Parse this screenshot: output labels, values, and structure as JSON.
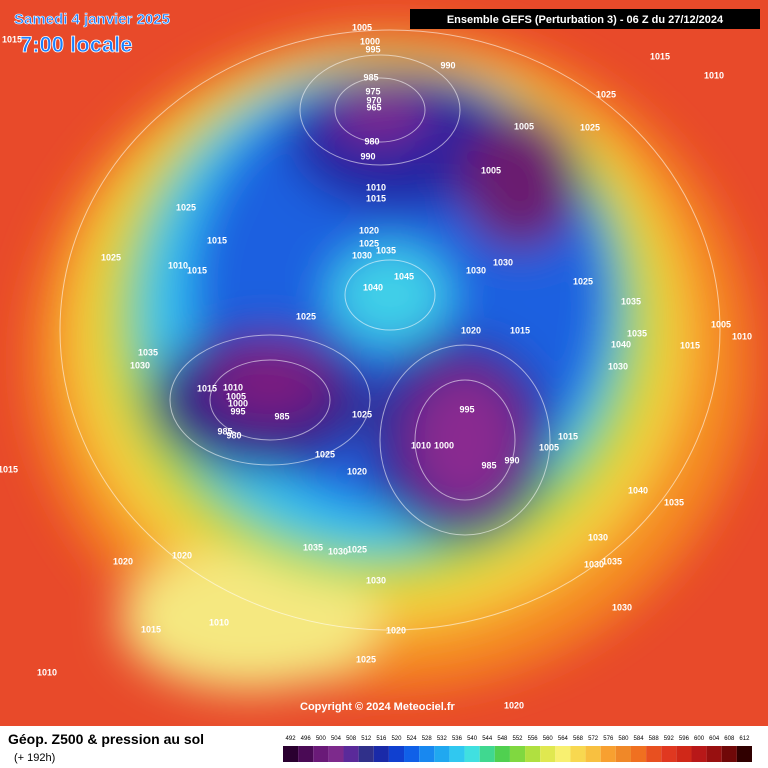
{
  "header": {
    "date": "Samedi 4 janvier 2025",
    "time": "7:00 locale",
    "model": "Ensemble GEFS  (Perturbation 3)  -  06 Z du 27/12/2024"
  },
  "footer": {
    "title": "Géop. Z500 & pression au sol",
    "lead": "(+ 192h)",
    "copyright": "Copyright © 2024 Meteociel.fr"
  },
  "isobar_labels": [
    1015,
    1005,
    1000,
    995,
    990,
    1015,
    1010,
    985,
    975,
    970,
    965,
    1025,
    1005,
    1025,
    980,
    990,
    1005,
    1010,
    1015,
    1025,
    1020,
    1025,
    1035,
    1030,
    1015,
    1025,
    1010,
    1015,
    1030,
    1030,
    1045,
    1025,
    1040,
    1035,
    1025,
    1020,
    1015,
    1035,
    1040,
    1005,
    1010,
    1015,
    1035,
    1030,
    1030,
    1015,
    1010,
    1005,
    1000,
    995,
    985,
    985,
    980,
    1025,
    995,
    1010,
    1000,
    1015,
    1005,
    990,
    985,
    1015,
    1025,
    1020,
    1040,
    1035,
    1030,
    1035,
    1030,
    1025,
    1030,
    1035,
    1020,
    1020,
    1030,
    1030,
    1010,
    1015,
    1020,
    1025,
    1010,
    1020
  ],
  "legend": {
    "levels": [
      492,
      496,
      500,
      504,
      508,
      512,
      516,
      520,
      524,
      528,
      532,
      536,
      540,
      544,
      548,
      552,
      556,
      560,
      564,
      568,
      572,
      576,
      580,
      584,
      588,
      592,
      596,
      600,
      604,
      608,
      612
    ],
    "colors": [
      "#2a0030",
      "#4a0a55",
      "#6a1a78",
      "#7d2a8c",
      "#5a2a9a",
      "#30308a",
      "#1a2aa8",
      "#1040d0",
      "#1060e8",
      "#1888f0",
      "#20a8f0",
      "#30c8f0",
      "#40e0e0",
      "#40d890",
      "#50d050",
      "#80d840",
      "#b0e040",
      "#e0e850",
      "#f8f070",
      "#f8d850",
      "#f8c040",
      "#f8a030",
      "#f08828",
      "#f07020",
      "#e85020",
      "#e03820",
      "#d02818",
      "#b81818",
      "#981010",
      "#700808",
      "#300000"
    ]
  }
}
